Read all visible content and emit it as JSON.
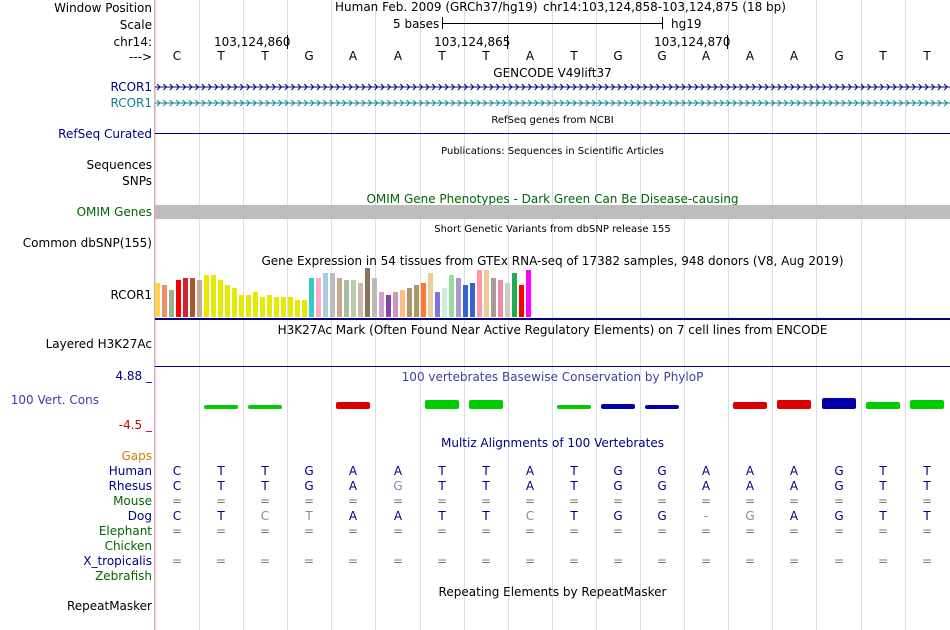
{
  "header": {
    "assembly": "Human Feb. 2009 (GRCh37/hg19)",
    "position": "chr14:103,124,858-103,124,875 (18 bp)",
    "scale_label": "5 bases",
    "db": "hg19",
    "chrom_label": "chr14:",
    "positions": [
      "103,124,860",
      "103,124,865",
      "103,124,870"
    ],
    "arrow": "--->"
  },
  "sequence": [
    "C",
    "T",
    "T",
    "G",
    "A",
    "A",
    "T",
    "T",
    "A",
    "T",
    "G",
    "G",
    "A",
    "A",
    "A",
    "G",
    "T",
    "T"
  ],
  "labels": {
    "window_position": "Window Position",
    "scale": "Scale",
    "chrom": "chr14:",
    "arrow": "--->",
    "rcor1_a": "RCOR1",
    "rcor1_b": "RCOR1",
    "refseq": "RefSeq Curated",
    "sequences": "Sequences",
    "snps": "SNPs",
    "omim": "OMIM Genes",
    "common_snp": "Common dbSNP(155)",
    "gtex": "RCOR1",
    "h3k27ac": "Layered H3K27Ac",
    "cons_max": "4.88 _",
    "cons": "100 Vert. Cons",
    "cons_min": "-4.5 _",
    "gaps": "Gaps",
    "human": "Human",
    "rhesus": "Rhesus",
    "mouse": "Mouse",
    "dog": "Dog",
    "elephant": "Elephant",
    "chicken": "Chicken",
    "xtrop": "X_tropicalis",
    "zebrafish": "Zebrafish",
    "repeatmasker": "RepeatMasker"
  },
  "track_titles": {
    "gencode": "GENCODE V49lift37",
    "refseq": "RefSeq genes from NCBI",
    "pubs": "Publications: Sequences in Scientific Articles",
    "omim": "OMIM Gene Phenotypes - Dark Green Can Be Disease-causing",
    "dbsnp": "Short Genetic Variants from dbSNP release 155",
    "gtex": "Gene Expression in 54 tissues from GTEx RNA-seq of 17382 samples, 948 donors (V8, Aug 2019)",
    "h3k27ac": "H3K27Ac Mark (Often Found Near Active Regulatory Elements) on 7 cell lines from ENCODE",
    "phylop": "100 vertebrates Basewise Conservation by PhyloP",
    "multiz": "Multiz Alignments of 100 Vertebrates",
    "repeatmasker": "Repeating Elements by RepeatMasker"
  },
  "alignments": {
    "human": [
      "C",
      "T",
      "T",
      "G",
      "A",
      "A",
      "T",
      "T",
      "A",
      "T",
      "G",
      "G",
      "A",
      "A",
      "A",
      "G",
      "T",
      "T"
    ],
    "rhesus": [
      "C",
      "T",
      "T",
      "G",
      "A",
      "G",
      "T",
      "T",
      "A",
      "T",
      "G",
      "G",
      "A",
      "A",
      "A",
      "G",
      "T",
      "T"
    ],
    "mouse": [
      "=",
      "=",
      "=",
      "=",
      "=",
      "=",
      "=",
      "=",
      "=",
      "=",
      "=",
      "=",
      "=",
      "=",
      "=",
      "=",
      "=",
      "="
    ],
    "dog": [
      "C",
      "T",
      "C",
      "T",
      "A",
      "A",
      "T",
      "T",
      "C",
      "T",
      "G",
      "G",
      "-",
      "G",
      "A",
      "G",
      "T",
      "T"
    ],
    "elephant": [
      "=",
      "=",
      "=",
      "=",
      "=",
      "=",
      "=",
      "=",
      "=",
      "=",
      "=",
      "=",
      "=",
      "=",
      "=",
      "=",
      "=",
      "="
    ],
    "xtrop": [
      "=",
      "=",
      "=",
      "=",
      "=",
      "=",
      "=",
      "=",
      "=",
      "=",
      "=",
      "=",
      "=",
      "=",
      "=",
      "=",
      "=",
      "="
    ]
  },
  "gtex": {
    "values": [
      0.7,
      0.65,
      0.55,
      0.75,
      0.8,
      0.8,
      0.75,
      0.85,
      0.85,
      0.75,
      0.65,
      0.6,
      0.45,
      0.45,
      0.5,
      0.4,
      0.45,
      0.4,
      0.4,
      0.4,
      0.35,
      0.35,
      0.8,
      0.8,
      0.9,
      0.9,
      0.8,
      0.75,
      0.75,
      0.7,
      1.0,
      0.8,
      0.5,
      0.45,
      0.5,
      0.55,
      0.6,
      0.65,
      0.7,
      0.9,
      0.5,
      0.6,
      0.85,
      0.8,
      0.65,
      0.7,
      0.95,
      0.95,
      0.8,
      0.75,
      0.7,
      0.9,
      0.65,
      0.95
    ],
    "colors": [
      "#ffd34d",
      "#ee8f6a",
      "#9bb08a",
      "#ff0000",
      "#cc2233",
      "#aa5533",
      "#c8a98c",
      "#e8e800",
      "#e8e800",
      "#e8e800",
      "#e8e800",
      "#e8e800",
      "#e8e800",
      "#e8e800",
      "#e8e800",
      "#e8e800",
      "#e8e800",
      "#e8e800",
      "#e8e800",
      "#e8e800",
      "#e8e800",
      "#e8e800",
      "#33cccc",
      "#ffaacc",
      "#aaccdd",
      "#bbbbbb",
      "#c8a98c",
      "#aabbaa",
      "#bbccaa",
      "#ccbbaa",
      "#8a7559",
      "#bbbbbb",
      "#d0a0cc",
      "#8844aa",
      "#cc99bb",
      "#ffbb88",
      "#aa9966",
      "#aa9966",
      "#ff7733",
      "#eecc99",
      "#7777dd",
      "#cceedd",
      "#99dd99",
      "#aa99cc",
      "#3366cc",
      "#3366cc",
      "#ff99aa",
      "#eecc99",
      "#aa9999",
      "#ee88aa",
      "#ccccbb",
      "#22aa55",
      "#ff0000",
      "#ff00ff"
    ]
  },
  "conservation": {
    "colors": {
      "A": "#dd0000",
      "C": "#0000dd",
      "G": "#0000aa",
      "T": "#00cc00"
    },
    "heights": [
      0,
      2,
      2,
      0,
      4,
      0,
      5,
      5,
      0,
      2,
      3,
      2,
      0,
      4,
      5,
      6,
      4,
      5
    ]
  },
  "colors": {
    "gencode": "#000080",
    "gencode_secondary": "#0e7f98",
    "omim": "#006600",
    "phylop": "#4040a0",
    "cons_max": "#000080",
    "cons_min": "#c00000",
    "gaps": "#d08000"
  }
}
